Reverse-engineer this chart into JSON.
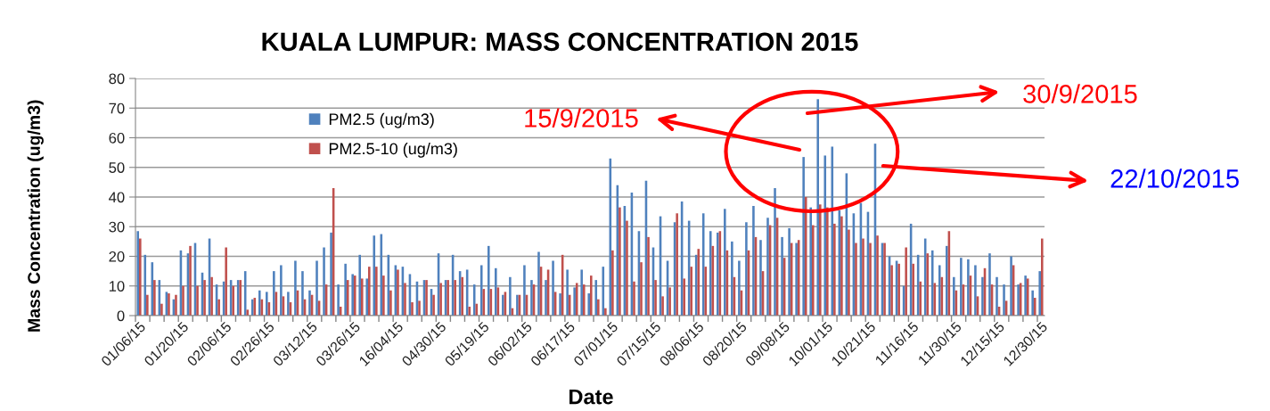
{
  "chart_data": {
    "type": "bar",
    "title": "KUALA LUMPUR: MASS CONCENTRATION 2015",
    "xlabel": "Date",
    "ylabel": "Mass Concentration (ug/m3)",
    "categories": [
      "01/06/15",
      null,
      null,
      null,
      null,
      null,
      "01/20/15",
      null,
      null,
      null,
      null,
      null,
      "02/06/15",
      null,
      null,
      null,
      null,
      null,
      "02/26/15",
      null,
      null,
      null,
      null,
      null,
      "03/12/15",
      null,
      null,
      null,
      null,
      null,
      "03/26/15",
      null,
      null,
      null,
      null,
      null,
      "16/04/15",
      null,
      null,
      null,
      null,
      null,
      "04/30/15",
      null,
      null,
      null,
      null,
      null,
      "05/19/15",
      null,
      null,
      null,
      null,
      null,
      "06/02/15",
      null,
      null,
      null,
      null,
      null,
      "06/17/15",
      null,
      null,
      null,
      null,
      null,
      "07/01/15",
      null,
      null,
      null,
      null,
      null,
      "07/15/15",
      null,
      null,
      null,
      null,
      null,
      "08/06/15",
      null,
      null,
      null,
      null,
      null,
      "08/20/15",
      null,
      null,
      null,
      null,
      null,
      "09/08/15",
      null,
      null,
      null,
      null,
      null,
      "10/01/15",
      null,
      null,
      null,
      null,
      null,
      "10/21/15",
      null,
      null,
      null,
      null,
      null,
      "11/16/15",
      null,
      null,
      null,
      null,
      null,
      "11/30/15",
      null,
      null,
      null,
      null,
      null,
      "12/15/15",
      null,
      null,
      null,
      null,
      null,
      "12/30/15"
    ],
    "series": [
      {
        "name": "PM2.5 (ug/m3)",
        "color": "#4f81bd",
        "values": [
          28.5,
          20.5,
          18,
          12,
          8,
          5.5,
          22,
          21,
          24.5,
          14.5,
          26,
          10.5,
          11.5,
          12,
          12,
          15,
          5.5,
          8.5,
          8,
          15,
          17,
          8,
          18.5,
          15,
          8.5,
          18.5,
          23,
          28,
          10.5,
          17.5,
          14,
          20.5,
          12.5,
          27,
          27.5,
          20.5,
          17,
          16.5,
          14,
          11.5,
          12,
          9,
          21,
          12,
          20.5,
          15,
          15.5,
          10.5,
          17,
          23.5,
          16,
          7,
          13,
          7,
          17,
          12,
          21.5,
          12,
          18.5,
          7.5,
          15.5,
          9.5,
          15.5,
          7.5,
          12,
          16.5,
          53,
          44,
          37,
          41.5,
          28.5,
          45.5,
          23,
          33.5,
          18.5,
          31.5,
          38.5,
          32,
          20.5,
          34.5,
          28.5,
          28,
          36,
          25,
          18.5,
          31.5,
          37,
          25.5,
          33,
          43,
          26.5,
          29.5,
          24.5,
          53.5,
          36.5,
          73,
          54,
          57,
          35.5,
          48,
          34.5,
          38,
          35,
          58,
          24.5,
          20,
          18.5,
          10,
          31,
          20.5,
          26,
          22,
          17,
          23.5,
          13,
          19.5,
          19,
          17,
          13,
          21,
          13,
          10.5,
          20,
          10.5,
          13.5,
          8.5,
          15
        ]
      },
      {
        "name": "PM2.5-10 (ug/m3)",
        "color": "#c0504d",
        "values": [
          26,
          7,
          12,
          4,
          7.5,
          7,
          10,
          23.5,
          10,
          12,
          13,
          5.5,
          23,
          10,
          12,
          2,
          6,
          5.5,
          4.5,
          8,
          6.5,
          4.5,
          8.5,
          5.5,
          7,
          5,
          10.5,
          43,
          3,
          12,
          13.5,
          12.5,
          16.5,
          16.5,
          13.5,
          8.5,
          15.5,
          11,
          4.5,
          5,
          12,
          7,
          11,
          12,
          12,
          13,
          3,
          4,
          9,
          9,
          9.5,
          8,
          2.5,
          7,
          7,
          10.5,
          16.5,
          15.5,
          8,
          20.5,
          7,
          11,
          10.5,
          13.5,
          5.5,
          2.5,
          22,
          36.5,
          32,
          11.5,
          18,
          26.5,
          12,
          6.5,
          9.5,
          34.5,
          12.5,
          16.5,
          22.5,
          16.5,
          23.5,
          28.5,
          22,
          13,
          8.5,
          22,
          26.5,
          15,
          30.5,
          33,
          19.5,
          24.5,
          25.5,
          40,
          30.5,
          37.5,
          36.5,
          31,
          33.5,
          29,
          24.5,
          26,
          24.5,
          27,
          24.5,
          17,
          17.5,
          23,
          17.5,
          11.5,
          21,
          11,
          13,
          28.5,
          8.5,
          10.5,
          13.5,
          6.5,
          16,
          10.5,
          3,
          5,
          17,
          11,
          12.5,
          6,
          26
        ]
      }
    ],
    "ylim": [
      0,
      80
    ],
    "yticks": [
      0,
      10,
      20,
      30,
      40,
      50,
      60,
      70,
      80
    ],
    "grid": "y",
    "legend": "top left",
    "annotations": [
      "15/9/2015",
      "30/9/2015",
      "22/10/2015"
    ]
  }
}
